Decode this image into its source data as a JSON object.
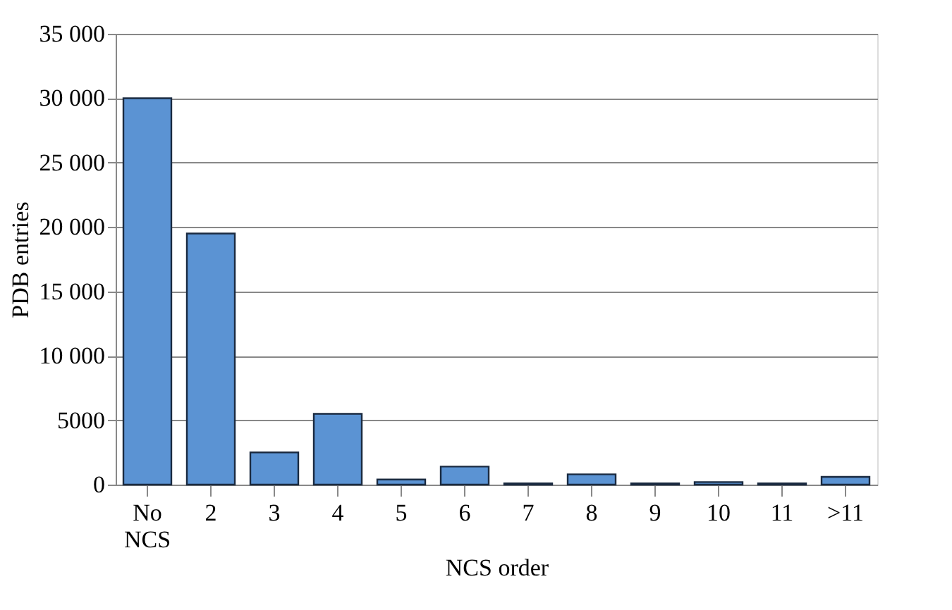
{
  "chart_data": {
    "type": "bar",
    "xlabel": "NCS order",
    "ylabel": "PDB entries",
    "categories": [
      "No NCS",
      "2",
      "3",
      "4",
      "5",
      "6",
      "7",
      "8",
      "9",
      "10",
      "11",
      ">11"
    ],
    "values": [
      30000,
      19500,
      2500,
      5500,
      400,
      1400,
      100,
      800,
      100,
      200,
      100,
      600
    ],
    "color": "#5b93d3",
    "ylim": [
      0,
      35000
    ],
    "yticks": [
      0,
      5000,
      {
        "value": 10000,
        "label": "10 000"
      },
      {
        "value": 15000,
        "label": "15 000"
      },
      {
        "value": 20000,
        "label": "20 000"
      },
      {
        "value": 25000,
        "label": "25 000"
      },
      {
        "value": 30000,
        "label": "30 000"
      },
      {
        "value": 35000,
        "label": "35 000"
      }
    ],
    "grid": "y"
  }
}
